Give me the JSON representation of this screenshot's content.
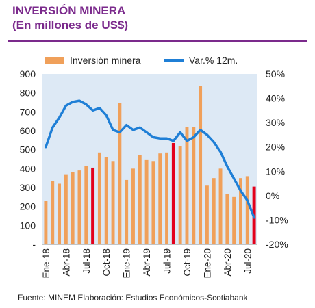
{
  "header": {
    "title": "INVERSIÓN MINERA",
    "subtitle": "(En millones de US$)"
  },
  "source": "Fuente: MINEM Elaboración: Estudios Económicos-Scotiabank",
  "colors": {
    "accent": "#7b2a8c",
    "bars": "#f0a05a",
    "bars_highlight": "#e3001b",
    "line": "#1f7fd6",
    "plot_bg": "#dde9f5"
  },
  "chart_data": {
    "type": "bar",
    "categories": [
      "Ene-18",
      "Feb-18",
      "Mar-18",
      "Abr-18",
      "May-18",
      "Jun-18",
      "Jul-18",
      "Ago-18",
      "Sep-18",
      "Oct-18",
      "Nov-18",
      "Dic-18",
      "Ene-19",
      "Feb-19",
      "Mar-19",
      "Abr-19",
      "May-19",
      "Jun-19",
      "Jul-19",
      "Ago-19",
      "Sep-19",
      "Oct-19",
      "Nov-19",
      "Dic-19",
      "Ene-20",
      "Feb-20",
      "Mar-20",
      "Abr-20",
      "May-20",
      "Jun-20",
      "Jul-20",
      "Ago-20"
    ],
    "x_tick_labels": [
      "Ene-18",
      "Abr-18",
      "Jul-18",
      "Oct-18",
      "Ene-19",
      "Abr-19",
      "Jul-19",
      "Oct-19",
      "Ene-20",
      "Abr-20",
      "Jul-20"
    ],
    "series": [
      {
        "name": "Inversión minera",
        "type": "bar",
        "axis": "left",
        "values": [
          230,
          335,
          320,
          370,
          380,
          390,
          415,
          405,
          485,
          460,
          440,
          745,
          340,
          400,
          470,
          445,
          440,
          480,
          485,
          535,
          520,
          620,
          620,
          835,
          310,
          350,
          400,
          265,
          250,
          350,
          360,
          305
        ],
        "highlight_categories": [
          "Ago-18",
          "Ago-19",
          "Ago-20"
        ]
      },
      {
        "name": "Var.% 12m.",
        "type": "line",
        "axis": "right",
        "values": [
          20,
          28,
          32,
          37,
          38.5,
          39,
          37.5,
          35,
          36,
          33,
          27,
          26,
          29,
          27,
          28,
          26,
          24,
          23.5,
          23.5,
          22.5,
          26,
          22.5,
          24,
          27,
          25,
          22,
          18,
          12,
          7,
          2,
          -2,
          -9
        ]
      }
    ],
    "y_left": {
      "lim": [
        0,
        900
      ],
      "ticks": [
        "-",
        "100",
        "200",
        "300",
        "400",
        "500",
        "600",
        "700",
        "800",
        "900"
      ]
    },
    "y_right": {
      "lim": [
        -20,
        50
      ],
      "ticks": [
        "-20%",
        "-10%",
        "0%",
        "10%",
        "20%",
        "30%",
        "40%",
        "50%"
      ]
    },
    "legend": "top",
    "grid": false
  }
}
